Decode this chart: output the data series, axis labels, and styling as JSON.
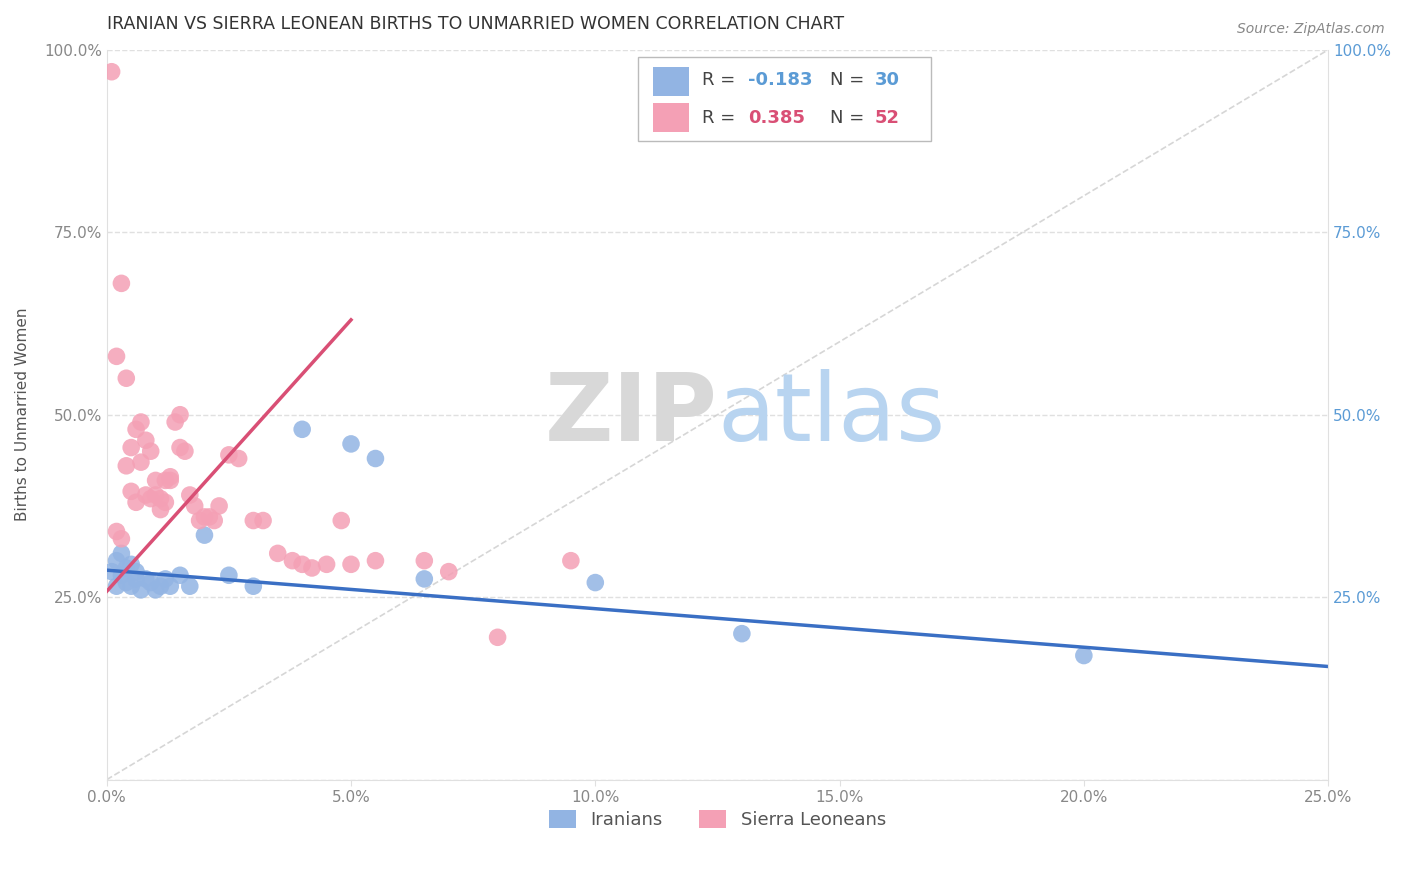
{
  "title": "IRANIAN VS SIERRA LEONEAN BIRTHS TO UNMARRIED WOMEN CORRELATION CHART",
  "source": "Source: ZipAtlas.com",
  "ylabel": "Births to Unmarried Women",
  "xlim": [
    0.0,
    0.25
  ],
  "ylim": [
    0.0,
    1.0
  ],
  "xticks": [
    0.0,
    0.05,
    0.1,
    0.15,
    0.2,
    0.25
  ],
  "yticks": [
    0.0,
    0.25,
    0.5,
    0.75,
    1.0
  ],
  "xticklabels": [
    "0.0%",
    "5.0%",
    "10.0%",
    "15.0%",
    "20.0%",
    "25.0%"
  ],
  "yticklabels": [
    "",
    "25.0%",
    "50.0%",
    "75.0%",
    "100.0%"
  ],
  "color_iranian": "#92b4e3",
  "color_sierraleonean": "#f4a0b5",
  "color_line_iranian": "#3a6fc4",
  "color_line_sierraleonean": "#d94f75",
  "watermark_zip": "ZIP",
  "watermark_atlas": "atlas",
  "iranian_x": [
    0.001,
    0.002,
    0.002,
    0.003,
    0.003,
    0.004,
    0.004,
    0.005,
    0.005,
    0.006,
    0.006,
    0.007,
    0.008,
    0.009,
    0.01,
    0.011,
    0.012,
    0.013,
    0.015,
    0.017,
    0.02,
    0.025,
    0.03,
    0.04,
    0.05,
    0.055,
    0.065,
    0.1,
    0.13,
    0.2
  ],
  "iranian_y": [
    0.285,
    0.3,
    0.265,
    0.31,
    0.28,
    0.29,
    0.27,
    0.265,
    0.295,
    0.275,
    0.285,
    0.26,
    0.275,
    0.27,
    0.26,
    0.265,
    0.275,
    0.265,
    0.28,
    0.265,
    0.335,
    0.28,
    0.265,
    0.48,
    0.46,
    0.44,
    0.275,
    0.27,
    0.2,
    0.17
  ],
  "sierraleonean_x": [
    0.001,
    0.002,
    0.002,
    0.003,
    0.003,
    0.004,
    0.004,
    0.005,
    0.005,
    0.006,
    0.006,
    0.007,
    0.007,
    0.008,
    0.008,
    0.009,
    0.009,
    0.01,
    0.01,
    0.011,
    0.011,
    0.012,
    0.012,
    0.013,
    0.013,
    0.014,
    0.015,
    0.015,
    0.016,
    0.017,
    0.018,
    0.019,
    0.02,
    0.021,
    0.022,
    0.023,
    0.025,
    0.027,
    0.03,
    0.032,
    0.035,
    0.038,
    0.04,
    0.042,
    0.045,
    0.048,
    0.05,
    0.055,
    0.065,
    0.07,
    0.08,
    0.095
  ],
  "sierraleonean_y": [
    0.97,
    0.58,
    0.34,
    0.68,
    0.33,
    0.43,
    0.55,
    0.395,
    0.455,
    0.38,
    0.48,
    0.435,
    0.49,
    0.39,
    0.465,
    0.385,
    0.45,
    0.39,
    0.41,
    0.385,
    0.37,
    0.38,
    0.41,
    0.41,
    0.415,
    0.49,
    0.455,
    0.5,
    0.45,
    0.39,
    0.375,
    0.355,
    0.36,
    0.36,
    0.355,
    0.375,
    0.445,
    0.44,
    0.355,
    0.355,
    0.31,
    0.3,
    0.295,
    0.29,
    0.295,
    0.355,
    0.295,
    0.3,
    0.3,
    0.285,
    0.195,
    0.3
  ]
}
